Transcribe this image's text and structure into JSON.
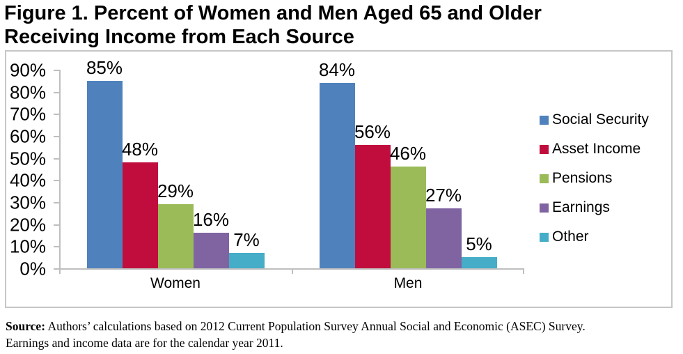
{
  "figure": {
    "title_lines": [
      "Figure 1. Percent of Women and Men Aged 65 and Older",
      "Receiving Income from Each Source"
    ]
  },
  "chart_data": {
    "type": "bar",
    "title": "Figure 1. Percent of Women and Men Aged 65 and Older Receiving Income from Each Source",
    "categories": [
      "Women",
      "Men"
    ],
    "series": [
      {
        "name": "Social Security",
        "color": "#4F81BD",
        "values": [
          85,
          84
        ]
      },
      {
        "name": "Asset Income",
        "color": "#C00D3D",
        "values": [
          48,
          56
        ]
      },
      {
        "name": "Pensions",
        "color": "#9BBB59",
        "values": [
          29,
          46
        ]
      },
      {
        "name": "Earnings",
        "color": "#8064A2",
        "values": [
          16,
          27
        ]
      },
      {
        "name": "Other",
        "color": "#45ADC7",
        "values": [
          7,
          5
        ]
      }
    ],
    "ylim": [
      0,
      90
    ],
    "ytick_step": 10,
    "ytick_suffix": "%",
    "data_label_suffix": "%",
    "grid": "off",
    "legend_position": "right"
  },
  "source_note": {
    "label": "Source:",
    "text": "Authors’ calculations based on 2012 Current Population Survey Annual Social and Economic (ASEC) Survey. Earnings and income data are for the calendar year 2011."
  },
  "colors": {
    "axis": "#BFBFBF",
    "chart_border": "#C6C6C6",
    "text": "#000000"
  }
}
